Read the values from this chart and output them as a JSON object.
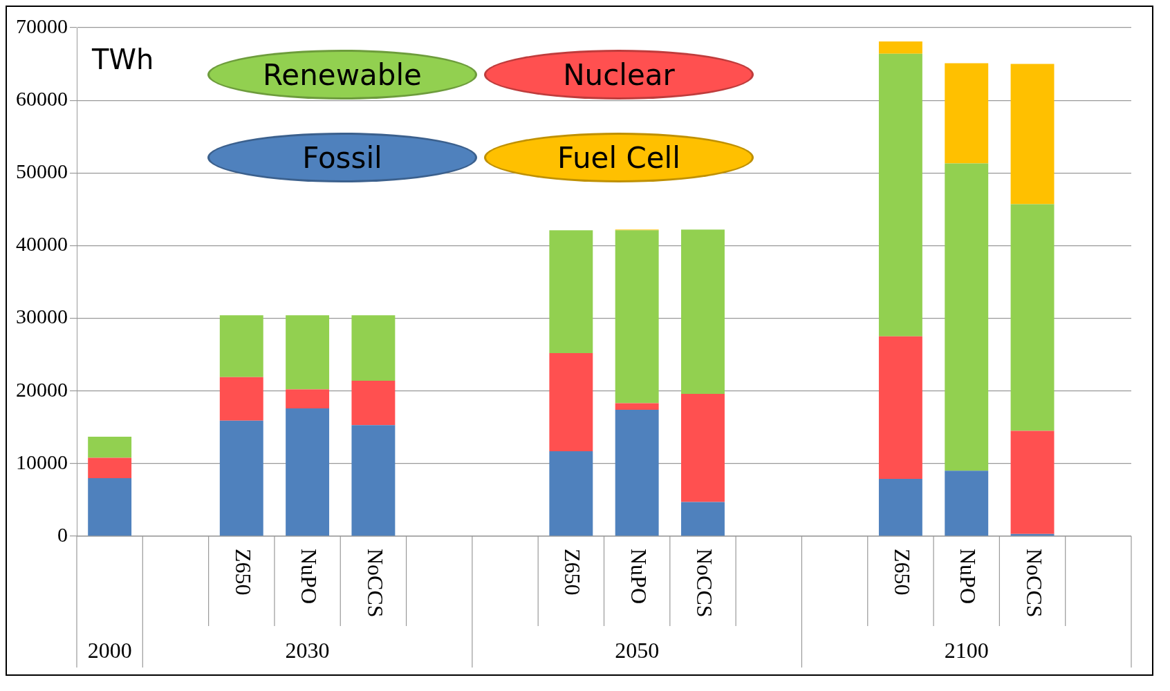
{
  "chart_data": {
    "type": "bar",
    "stacked": true,
    "ylabel": "TWh",
    "categories": [
      null,
      null,
      "Z650",
      "NuPO",
      "NoCCS",
      null,
      null,
      "Z650",
      "NuPO",
      "NoCCS",
      null,
      null,
      "Z650",
      "NuPO",
      "NoCCS",
      null
    ],
    "annotations": [
      "2000",
      "2030",
      "2050",
      "2100"
    ],
    "series": [
      {
        "name": "Fossil",
        "color": "#4f81bd",
        "values": [
          8000,
          null,
          15900,
          17600,
          15300,
          null,
          null,
          11700,
          17400,
          4700,
          null,
          null,
          7900,
          9000,
          300,
          null
        ]
      },
      {
        "name": "Nuclear",
        "color": "#ff5050",
        "values": [
          2800,
          null,
          6000,
          2600,
          6100,
          null,
          null,
          13500,
          900,
          14900,
          null,
          null,
          19600,
          0,
          14200,
          null
        ]
      },
      {
        "name": "Renewable",
        "color": "#92d050",
        "values": [
          2900,
          null,
          8500,
          10200,
          9000,
          null,
          null,
          16900,
          23800,
          22600,
          null,
          null,
          38900,
          42300,
          31200,
          null
        ]
      },
      {
        "name": "Fuel Cell",
        "color": "#ffc000",
        "values": [
          0,
          null,
          0,
          0,
          0,
          null,
          null,
          0,
          100,
          0,
          null,
          null,
          1700,
          13800,
          19300,
          null
        ]
      }
    ],
    "ylim": [
      0,
      70000
    ],
    "yticks": [
      0,
      10000,
      20000,
      30000,
      40000,
      50000,
      60000,
      70000
    ],
    "grid": "y",
    "legend": "top left"
  }
}
